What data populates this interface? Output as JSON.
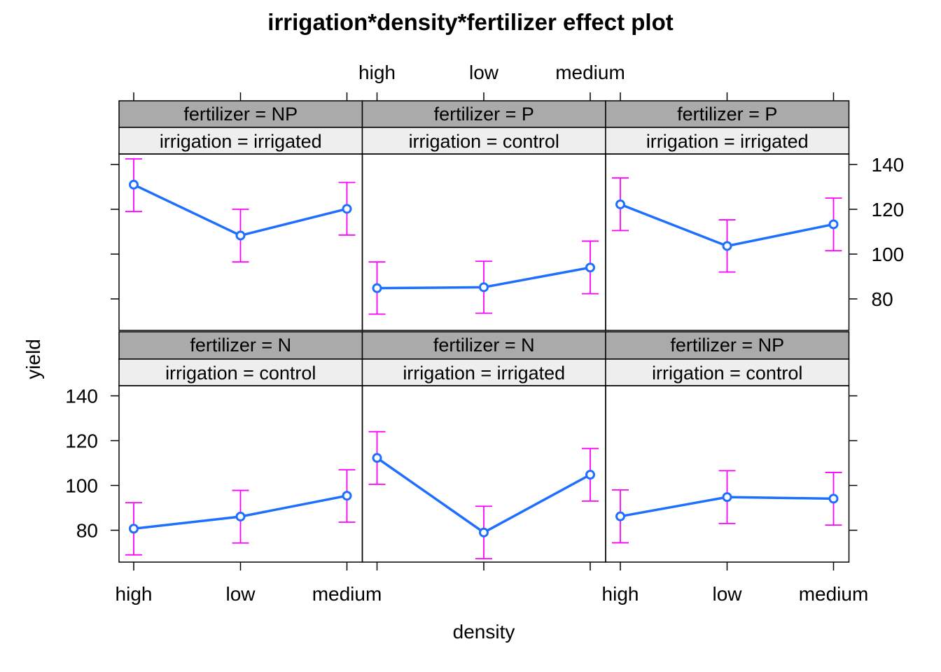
{
  "chart_data": {
    "type": "line",
    "title": "irrigation*density*fertilizer effect plot",
    "xlabel": "density",
    "ylabel": "yield",
    "categories": [
      "high",
      "low",
      "medium"
    ],
    "y_ticks": [
      80,
      100,
      120,
      140
    ],
    "ylim": [
      65,
      148
    ],
    "colors": {
      "line": "#1f6fff",
      "errorbar": "#ff00ff",
      "strip_top": "#aaaaaa",
      "strip_bottom": "#eeeeee"
    },
    "panels": [
      {
        "strip_top": "fertilizer = NP",
        "strip_bottom": "irrigation = irrigated",
        "values": [
          131,
          108.3,
          120.2
        ],
        "lower": [
          119,
          96.5,
          108.5
        ],
        "upper": [
          142.5,
          120,
          132
        ]
      },
      {
        "strip_top": "fertilizer = P",
        "strip_bottom": "irrigation = control",
        "values": [
          84.8,
          85.2,
          94
        ],
        "lower": [
          73.2,
          73.6,
          82.3
        ],
        "upper": [
          96.5,
          96.8,
          105.8
        ]
      },
      {
        "strip_top": "fertilizer = P",
        "strip_bottom": "irrigation = irrigated",
        "values": [
          122.2,
          103.6,
          113.3
        ],
        "lower": [
          110.5,
          92,
          101.5
        ],
        "upper": [
          134,
          115.3,
          125
        ]
      },
      {
        "strip_top": "fertilizer = N",
        "strip_bottom": "irrigation = control",
        "values": [
          80.7,
          86.1,
          95.4
        ],
        "lower": [
          69,
          74.3,
          83.6
        ],
        "upper": [
          92.3,
          97.8,
          107
        ]
      },
      {
        "strip_top": "fertilizer = N",
        "strip_bottom": "irrigation = irrigated",
        "values": [
          112.3,
          79,
          104.8
        ],
        "lower": [
          100.5,
          67.3,
          93
        ],
        "upper": [
          124,
          90.7,
          116.5
        ]
      },
      {
        "strip_top": "fertilizer = NP",
        "strip_bottom": "irrigation = control",
        "values": [
          86.2,
          94.8,
          94.1
        ],
        "lower": [
          74.4,
          83,
          82.3
        ],
        "upper": [
          98,
          106.6,
          105.8
        ]
      }
    ]
  }
}
